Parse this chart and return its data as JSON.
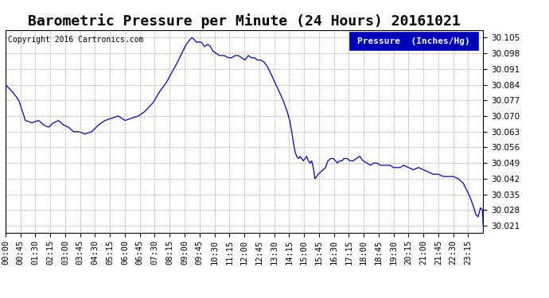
{
  "title": "Barometric Pressure per Minute (24 Hours) 20161021",
  "copyright": "Copyright 2016 Cartronics.com",
  "legend_label": "Pressure  (Inches/Hg)",
  "line_color": "#0000cc",
  "background_color": "#ffffff",
  "grid_color": "#aaaaaa",
  "ylim": [
    30.018,
    30.1085
  ],
  "yticks": [
    30.021,
    30.028,
    30.035,
    30.042,
    30.049,
    30.056,
    30.063,
    30.07,
    30.077,
    30.084,
    30.091,
    30.098,
    30.105
  ],
  "xtick_labels": [
    "00:00",
    "00:45",
    "01:30",
    "02:15",
    "03:00",
    "03:45",
    "04:30",
    "05:15",
    "06:00",
    "06:45",
    "07:30",
    "08:15",
    "09:00",
    "09:45",
    "10:30",
    "11:15",
    "12:00",
    "12:45",
    "13:30",
    "14:15",
    "15:00",
    "15:45",
    "16:30",
    "17:15",
    "18:00",
    "18:45",
    "19:30",
    "20:15",
    "21:00",
    "21:45",
    "22:30",
    "23:15"
  ],
  "title_fontsize": 13,
  "tick_fontsize": 7.5,
  "legend_fontsize": 8,
  "copyright_fontsize": 7,
  "keypoints": [
    [
      0,
      30.084
    ],
    [
      20,
      30.081
    ],
    [
      40,
      30.077
    ],
    [
      60,
      30.068
    ],
    [
      80,
      30.067
    ],
    [
      100,
      30.068
    ],
    [
      115,
      30.066
    ],
    [
      130,
      30.065
    ],
    [
      145,
      30.067
    ],
    [
      160,
      30.068
    ],
    [
      175,
      30.066
    ],
    [
      190,
      30.065
    ],
    [
      205,
      30.063
    ],
    [
      220,
      30.063
    ],
    [
      240,
      30.062
    ],
    [
      260,
      30.063
    ],
    [
      280,
      30.066
    ],
    [
      300,
      30.068
    ],
    [
      320,
      30.069
    ],
    [
      340,
      30.07
    ],
    [
      360,
      30.068
    ],
    [
      380,
      30.069
    ],
    [
      400,
      30.07
    ],
    [
      420,
      30.072
    ],
    [
      445,
      30.076
    ],
    [
      465,
      30.081
    ],
    [
      485,
      30.085
    ],
    [
      500,
      30.089
    ],
    [
      515,
      30.093
    ],
    [
      525,
      30.096
    ],
    [
      535,
      30.099
    ],
    [
      545,
      30.102
    ],
    [
      555,
      30.104
    ],
    [
      562,
      30.105
    ],
    [
      570,
      30.104
    ],
    [
      575,
      30.103
    ],
    [
      580,
      30.103
    ],
    [
      590,
      30.103
    ],
    [
      600,
      30.101
    ],
    [
      610,
      30.102
    ],
    [
      618,
      30.101
    ],
    [
      625,
      30.099
    ],
    [
      635,
      30.098
    ],
    [
      645,
      30.097
    ],
    [
      660,
      30.097
    ],
    [
      672,
      30.096
    ],
    [
      682,
      30.096
    ],
    [
      692,
      30.097
    ],
    [
      702,
      30.097
    ],
    [
      712,
      30.096
    ],
    [
      722,
      30.095
    ],
    [
      732,
      30.097
    ],
    [
      742,
      30.096
    ],
    [
      750,
      30.096
    ],
    [
      760,
      30.095
    ],
    [
      770,
      30.095
    ],
    [
      780,
      30.094
    ],
    [
      790,
      30.092
    ],
    [
      800,
      30.089
    ],
    [
      812,
      30.085
    ],
    [
      825,
      30.081
    ],
    [
      837,
      30.077
    ],
    [
      847,
      30.073
    ],
    [
      857,
      30.068
    ],
    [
      863,
      30.063
    ],
    [
      868,
      30.058
    ],
    [
      873,
      30.054
    ],
    [
      878,
      30.052
    ],
    [
      883,
      30.051
    ],
    [
      888,
      30.052
    ],
    [
      893,
      30.051
    ],
    [
      898,
      30.05
    ],
    [
      903,
      30.051
    ],
    [
      908,
      30.052
    ],
    [
      913,
      30.05
    ],
    [
      918,
      30.049
    ],
    [
      923,
      30.05
    ],
    [
      928,
      30.047
    ],
    [
      933,
      30.042
    ],
    [
      938,
      30.043
    ],
    [
      943,
      30.044
    ],
    [
      950,
      30.045
    ],
    [
      958,
      30.046
    ],
    [
      965,
      30.047
    ],
    [
      972,
      30.05
    ],
    [
      980,
      30.051
    ],
    [
      988,
      30.051
    ],
    [
      995,
      30.05
    ],
    [
      1000,
      30.049
    ],
    [
      1008,
      30.05
    ],
    [
      1015,
      30.05
    ],
    [
      1020,
      30.051
    ],
    [
      1030,
      30.051
    ],
    [
      1038,
      30.05
    ],
    [
      1048,
      30.05
    ],
    [
      1058,
      30.051
    ],
    [
      1068,
      30.052
    ],
    [
      1078,
      30.05
    ],
    [
      1090,
      30.049
    ],
    [
      1100,
      30.048
    ],
    [
      1110,
      30.049
    ],
    [
      1120,
      30.049
    ],
    [
      1130,
      30.048
    ],
    [
      1140,
      30.048
    ],
    [
      1150,
      30.048
    ],
    [
      1160,
      30.048
    ],
    [
      1170,
      30.047
    ],
    [
      1180,
      30.047
    ],
    [
      1190,
      30.047
    ],
    [
      1200,
      30.048
    ],
    [
      1215,
      30.047
    ],
    [
      1230,
      30.046
    ],
    [
      1245,
      30.047
    ],
    [
      1260,
      30.046
    ],
    [
      1275,
      30.045
    ],
    [
      1290,
      30.044
    ],
    [
      1305,
      30.044
    ],
    [
      1320,
      30.043
    ],
    [
      1335,
      30.043
    ],
    [
      1350,
      30.043
    ],
    [
      1365,
      30.042
    ],
    [
      1380,
      30.04
    ],
    [
      1390,
      30.037
    ],
    [
      1400,
      30.034
    ],
    [
      1410,
      30.03
    ],
    [
      1418,
      30.026
    ],
    [
      1425,
      30.025
    ],
    [
      1432,
      30.029
    ],
    [
      1438,
      30.028
    ],
    [
      1440,
      30.021
    ]
  ]
}
